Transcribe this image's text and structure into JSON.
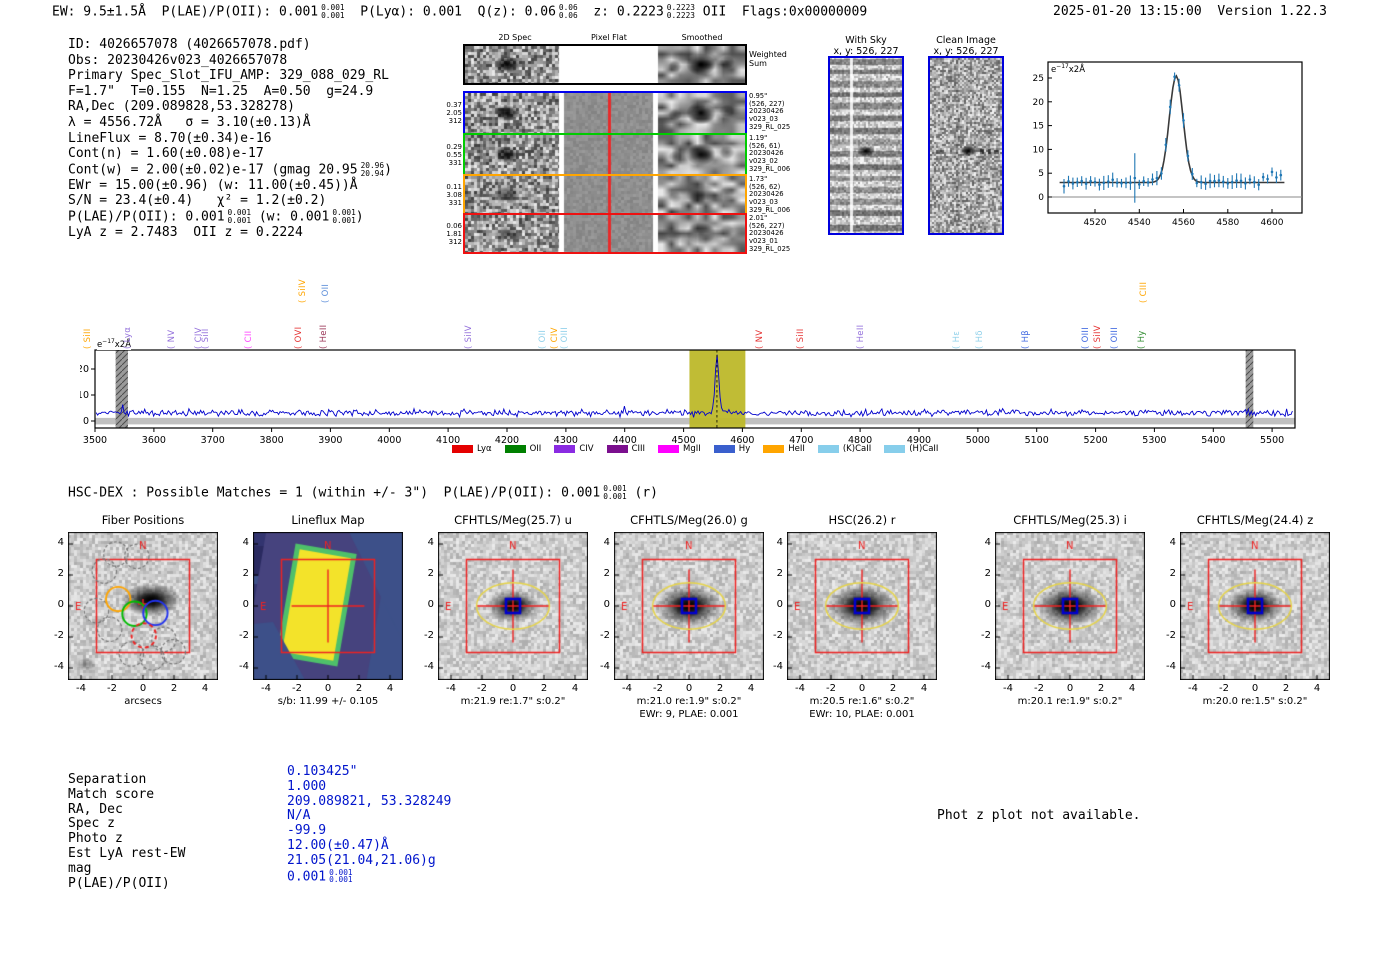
{
  "header": {
    "left_segments": [
      {
        "t": "EW: 9.5±1.5Å  P(LAE)/P(OII): 0.001"
      },
      {
        "f": [
          "0.001",
          "0.001"
        ]
      },
      {
        "t": "  P(Lyα): 0.001  Q(z): 0.06"
      },
      {
        "f": [
          "0.06",
          "0.06"
        ]
      },
      {
        "t": "  z: 0.2223"
      },
      {
        "f": [
          "0.2223",
          "0.2223"
        ]
      },
      {
        "t": " OII  Flags:0x00000009"
      }
    ],
    "right": "2025-01-20 13:15:00  Version 1.22.3"
  },
  "info_block": {
    "lines": [
      [
        {
          "t": "ID: 4026657078 (4026657078.pdf)"
        }
      ],
      [
        {
          "t": "Obs: 20230426v023_4026657078"
        }
      ],
      [
        {
          "t": "Primary Spec_Slot_IFU_AMP: 329_088_029_RL"
        }
      ],
      [
        {
          "t": "F=1.7\"  T=0.155  N=1.25  A=0.50  g=24.9"
        }
      ],
      [
        {
          "t": "RA,Dec (209.089828,53.328278)"
        }
      ],
      [
        {
          "t": "λ = 4556.72Å   σ = 3.10(±0.13)Å"
        }
      ],
      [
        {
          "t": "LineFlux = 8.70(±0.34)e-16"
        }
      ],
      [
        {
          "t": "Cont(n) = 1.60(±0.08)e-17"
        }
      ],
      [
        {
          "t": "Cont(w) = 2.00(±0.02)e-17 (gmag 20.95"
        },
        {
          "f": [
            "20.96",
            "20.94"
          ]
        },
        {
          "t": ")"
        }
      ],
      [
        {
          "t": "EWr = 15.00(±0.96) (w: 11.00(±0.45))Å"
        }
      ],
      [
        {
          "t": "S/N = 23.4(±0.4)   χ² = 1.2(±0.2)"
        }
      ],
      [
        {
          "t": "P(LAE)/P(OII): 0.001"
        },
        {
          "f": [
            "0.001",
            "0.001"
          ]
        },
        {
          "t": " (w: 0.001"
        },
        {
          "f": [
            "0.001",
            "0.001"
          ]
        },
        {
          "t": ")"
        }
      ],
      [
        {
          "t": "LyA z = 2.7483  OII z = 0.2224"
        }
      ]
    ]
  },
  "twod_spec": {
    "col_titles": [
      "2D Spec",
      "Pixel Flat",
      "Smoothed"
    ],
    "weighted_label": [
      "Weighted",
      "Sum"
    ],
    "rows": [
      {
        "color": "#0000ee",
        "left": [
          "0.37",
          "2.05",
          "312"
        ],
        "right": [
          "0.95\"",
          "(526, 227)",
          "20230426",
          "v023_03",
          "329_RL_025"
        ]
      },
      {
        "color": "#00cc00",
        "left": [
          "0.29",
          "0.55",
          "331"
        ],
        "right": [
          "1.19\"",
          "(526, 61)",
          "20230426",
          "v023_02",
          "329_RL_006"
        ]
      },
      {
        "color": "#ffa500",
        "left": [
          "0.11",
          "3.08",
          "331"
        ],
        "right": [
          "1.73\"",
          "(526, 62)",
          "20230426",
          "v023_03",
          "329_RL_006"
        ]
      },
      {
        "color": "#ee1111",
        "left": [
          "0.06",
          "1.81",
          "312"
        ],
        "right": [
          "2.01\"",
          "(526, 227)",
          "20230426",
          "v023_01",
          "329_RL_025"
        ]
      }
    ]
  },
  "sky_panels": [
    {
      "title": "With Sky",
      "subtitle": "x, y: 526, 227",
      "type": "banded",
      "border": "#0000dd"
    },
    {
      "title": "Clean Image",
      "subtitle": "x, y: 526, 227",
      "type": "clean",
      "border": "#0000dd"
    }
  ],
  "chart_data": [
    {
      "type": "line",
      "name": "emission_line_fit_inset",
      "unit_label": [
        {
          "t": "e"
        },
        {
          "sup": "−17"
        },
        {
          "t": "x2Å"
        }
      ],
      "x_ticks": [
        4520,
        4540,
        4560,
        4580,
        4600
      ],
      "y_ticks": [
        0,
        5,
        10,
        15,
        20,
        25
      ],
      "xlim": [
        4499,
        4613
      ],
      "ylim": [
        -3.5,
        28.5
      ],
      "series": [
        {
          "name": "observed_flux",
          "style": "errorbar_points",
          "color": "#1f77b4",
          "baseline": 3.1,
          "noise_sigma": 0.9,
          "errorbar": 1.1
        },
        {
          "name": "gaussian_fit",
          "style": "line",
          "color": "#3a3a3a",
          "baseline": 3.05,
          "peak_x": 4556.7,
          "peak_amplitude": 22.4,
          "sigma": 3.1
        }
      ],
      "zero_line": 0
    },
    {
      "type": "line",
      "name": "full_spectrum",
      "unit_label": [
        {
          "t": "e"
        },
        {
          "sup": "−17"
        },
        {
          "t": "x2Å"
        }
      ],
      "x_ticks": [
        3500,
        3600,
        3700,
        3800,
        3900,
        4000,
        4100,
        4200,
        4300,
        4400,
        4500,
        4600,
        4700,
        4800,
        4900,
        5000,
        5100,
        5200,
        5300,
        5400,
        5500
      ],
      "y_ticks": [
        0,
        10,
        20
      ],
      "xlim": [
        3500,
        5539
      ],
      "ylim": [
        -4.5,
        27.5
      ],
      "line_color": "#0000cc",
      "baseline": 3.1,
      "noise_sigma": 1.1,
      "emission_peak": {
        "x": 4556.7,
        "amplitude": 21.8,
        "sigma": 3.2
      },
      "highlight_band": {
        "x0": 4510,
        "x1": 4605,
        "color": "#bdb82a"
      },
      "masked_bands": [
        [
          3535,
          3556
        ],
        [
          5455,
          5468
        ]
      ],
      "error_band": {
        "lo": -1.3,
        "hi": 1.2,
        "color": "#b0b0b0"
      },
      "markers": [
        {
          "label": "SiII",
          "color": "#ffa500",
          "wl": 3512
        },
        {
          "label": "Lyα",
          "color": "#9370db",
          "wl": 3580
        },
        {
          "label": "NV",
          "color": "#9370db",
          "wl": 3654
        },
        {
          "label": "CIV",
          "color": "#9370db",
          "wl": 3700
        },
        {
          "label": "SiII",
          "color": "#9370db",
          "wl": 3712
        },
        {
          "label": "CII",
          "color": "#ff44ff",
          "wl": 3785
        },
        {
          "label": "OVI",
          "color": "#e53333",
          "wl": 3870
        },
        {
          "label": "SiIV",
          "color": "#ffa500",
          "wl": 3878,
          "raised": true
        },
        {
          "label": "HeII",
          "color": "#993355",
          "wl": 3913
        },
        {
          "label": "OII",
          "color": "#5b8dd9",
          "wl": 3917,
          "raised": true
        },
        {
          "label": "SiIV",
          "color": "#9370db",
          "wl": 4160
        },
        {
          "label": "OII",
          "color": "#8fd0ea",
          "wl": 4285
        },
        {
          "label": "CIV",
          "color": "#ffa500",
          "wl": 4305
        },
        {
          "label": "OIII",
          "color": "#8fd0ea",
          "wl": 4322
        },
        {
          "label": "NV",
          "color": "#e53333",
          "wl": 4653
        },
        {
          "label": "SiII",
          "color": "#e53333",
          "wl": 4723
        },
        {
          "label": "HeII",
          "color": "#9370db",
          "wl": 4825
        },
        {
          "label": "Hε",
          "color": "#8fd0ea",
          "wl": 4988
        },
        {
          "label": "Hδ",
          "color": "#8fd0ea",
          "wl": 5028
        },
        {
          "label": "Hβ",
          "color": "#4169e1",
          "wl": 5105
        },
        {
          "label": "OIII",
          "color": "#4169e1",
          "wl": 5207
        },
        {
          "label": "SiIV",
          "color": "#e53333",
          "wl": 5228
        },
        {
          "label": "OIII",
          "color": "#4169e1",
          "wl": 5257
        },
        {
          "label": "Hy",
          "color": "#2e8b2e",
          "wl": 5303
        },
        {
          "label": "CIII",
          "color": "#ffa500",
          "wl": 5306,
          "raised": true
        }
      ],
      "legend": [
        {
          "label": "Lyα",
          "color": "#e50000"
        },
        {
          "label": "OII",
          "color": "#008000"
        },
        {
          "label": "CIV",
          "color": "#8a2be2"
        },
        {
          "label": "CIII",
          "color": "#7b0f8e"
        },
        {
          "label": "MgII",
          "color": "#ff00ff"
        },
        {
          "label": "Hy",
          "color": "#3a5fcd"
        },
        {
          "label": "HeII",
          "color": "#ffa500"
        },
        {
          "label": "(K)CaII",
          "color": "#87ceeb"
        },
        {
          "label": "(H)CaII",
          "color": "#87ceeb"
        }
      ]
    }
  ],
  "hsc_line_segments": [
    {
      "t": "HSC-DEX : Possible Matches = 1 (within +/- 3\")  P(LAE)/P(OII): 0.001"
    },
    {
      "f": [
        "0.001",
        "0.001"
      ]
    },
    {
      "t": " (r)"
    }
  ],
  "cutouts": {
    "ticks": [
      -4,
      -2,
      0,
      2,
      4
    ],
    "compass": {
      "n": "N",
      "e": "E"
    },
    "panels": [
      {
        "title": "Fiber Positions",
        "xlabel": "arcsecs",
        "xlabel2": "",
        "type": "fiber"
      },
      {
        "title": "Lineflux Map",
        "xlabel": "s/b: 11.99 +/- 0.105",
        "xlabel2": "",
        "type": "lineflux"
      },
      {
        "title": "CFHTLS/Meg(25.7) u",
        "xlabel": "m:21.9  re:1.7\"  s:0.2\"",
        "xlabel2": "",
        "type": "galaxy"
      },
      {
        "title": "CFHTLS/Meg(26.0) g",
        "xlabel": "m:21.0  re:1.9\"  s:0.2\"",
        "xlabel2": "EWr: 9, PLAE: 0.001",
        "type": "galaxy"
      },
      {
        "title": "HSC(26.2) r",
        "xlabel": "m:20.5  re:1.6\"  s:0.2\"",
        "xlabel2": "EWr: 10, PLAE: 0.001",
        "type": "galaxy"
      },
      {
        "title": "CFHTLS/Meg(25.3) i",
        "xlabel": "m:20.1  re:1.9\"  s:0.2\"",
        "xlabel2": "",
        "type": "galaxy"
      },
      {
        "title": "CFHTLS/Meg(24.4) z",
        "xlabel": "m:20.0  re:1.5\"  s:0.2\"",
        "xlabel2": "",
        "type": "galaxy"
      }
    ],
    "overlay_colors": {
      "box": "#ee2222",
      "ellipse": "#e6d44a",
      "center_square": "#0000cc",
      "compass": "#ee2222"
    }
  },
  "match_table": {
    "rows": [
      {
        "label": "Separation",
        "value": [
          {
            "t": "0.103425\""
          }
        ]
      },
      {
        "label": "Match score",
        "value": [
          {
            "t": "1.000"
          }
        ]
      },
      {
        "label": "RA, Dec",
        "value": [
          {
            "t": "209.089821, 53.328249"
          }
        ]
      },
      {
        "label": "Spec z",
        "value": [
          {
            "t": "N/A"
          }
        ]
      },
      {
        "label": "Photo z",
        "value": [
          {
            "t": "-99.9"
          }
        ]
      },
      {
        "label": "Est LyA rest-EW",
        "value": [
          {
            "t": "12.00(±0.47)Å"
          }
        ]
      },
      {
        "label": "mag",
        "value": [
          {
            "t": "21.05(21.04,21.06)g"
          }
        ]
      },
      {
        "label": "P(LAE)/P(OII)",
        "value": [
          {
            "t": "0.001"
          },
          {
            "f": [
              "0.001",
              "0.001"
            ]
          }
        ]
      }
    ],
    "value_color": "#0014cc"
  },
  "phot_z_note": "Phot z plot not available."
}
